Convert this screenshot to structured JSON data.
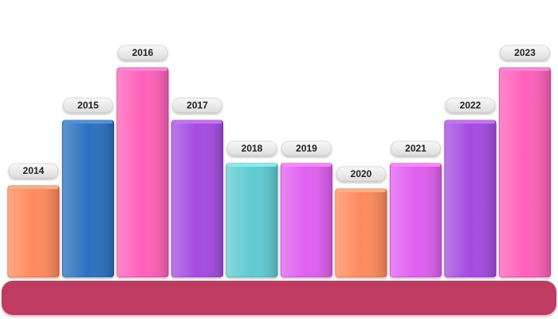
{
  "chart_data": {
    "type": "bar",
    "categories": [
      "2014",
      "2015",
      "2016",
      "2017",
      "2018",
      "2019",
      "2020",
      "2021",
      "2022",
      "2023"
    ],
    "values": [
      114,
      196,
      262,
      196,
      142,
      142,
      110,
      142,
      196,
      262
    ],
    "colors": [
      "#ff8a5c",
      "#2a6fbf",
      "#ff5fb9",
      "#a54be0",
      "#5ecbd2",
      "#e05ff0",
      "#ff8a5c",
      "#e05ff0",
      "#a54be0",
      "#ff5fb9"
    ],
    "title": "",
    "xlabel": "",
    "ylabel": "",
    "ylim": [
      0,
      262
    ],
    "grid": false,
    "legend": "none"
  },
  "colors": {
    "base": "#c03a62",
    "label_pill": "#ececec"
  }
}
